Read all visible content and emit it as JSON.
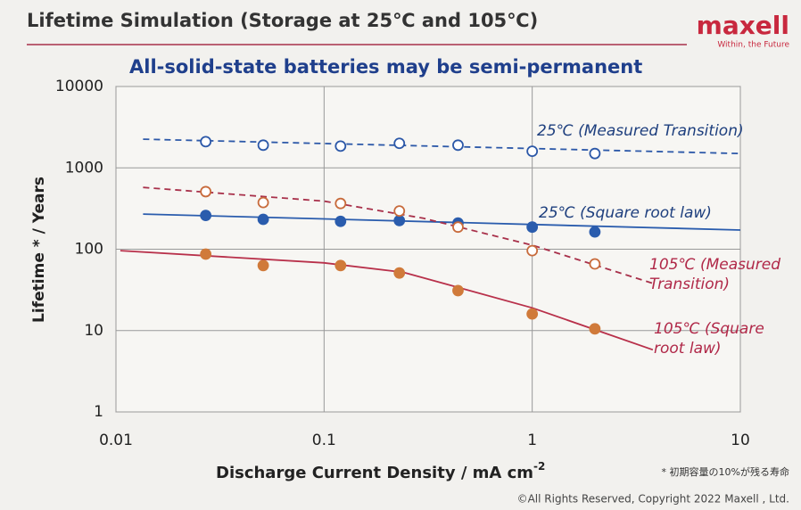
{
  "header": {
    "title": "Lifetime Simulation (Storage at 25℃ and 105℃)",
    "logo": "maxell",
    "tagline": "Within, the Future"
  },
  "chart_data": {
    "type": "scatter",
    "title": "All-solid-state batteries may be semi-permanent",
    "x_label": "Discharge Current Density  /  mA cm",
    "x_label_sup": "-2",
    "y_label": "Lifetime * / Years",
    "log_x": true,
    "log_y": true,
    "grid": true,
    "xlim": [
      0.01,
      10
    ],
    "xticks": [
      0.01,
      0.1,
      1,
      10
    ],
    "ylim": [
      1,
      10000
    ],
    "yticks": [
      1,
      10,
      100,
      1000,
      10000
    ],
    "x": [
      0.027,
      0.051,
      0.12,
      0.23,
      0.44,
      1.0,
      2.0
    ],
    "series": [
      {
        "name": "25℃ (Measured Transition)",
        "color": "#2c58a8",
        "label_color": "#1e3f7e",
        "marker": "open",
        "dashed": true,
        "values": [
          2100,
          1900,
          1850,
          2000,
          1900,
          1600,
          1500
        ],
        "fit_x": [
          0.0135,
          10
        ],
        "fit_values": [
          2250,
          1500
        ]
      },
      {
        "name": "25℃ (Square root law)",
        "color": "#2a5cad",
        "label_color": "#1e3f7e",
        "marker": "filled",
        "dashed": false,
        "values": [
          260,
          233,
          220,
          225,
          210,
          187,
          163
        ],
        "fit_x": [
          0.0135,
          10
        ],
        "fit_values": [
          270,
          172
        ]
      },
      {
        "name": "105℃ (Measured Transition)",
        "color": "#c86b3c",
        "line_color": "#a8304a",
        "label_color": "#b02848",
        "marker": "open",
        "dashed": true,
        "values": [
          510,
          375,
          365,
          295,
          187,
          96,
          66
        ],
        "fit_x": [
          0.0135,
          0.1,
          0.3,
          1,
          3.8
        ],
        "fit_values": [
          575,
          390,
          240,
          112,
          38
        ]
      },
      {
        "name": "105℃ (Square root law)",
        "color": "#d07a3a",
        "line_color": "#b8304a",
        "label_color": "#b02848",
        "marker": "filled",
        "dashed": false,
        "values": [
          87,
          63,
          63,
          51,
          31,
          16,
          10.5
        ],
        "fit_x": [
          0.0105,
          0.1,
          0.24,
          1,
          3.8
        ],
        "fit_values": [
          96,
          68,
          52,
          19,
          5.8
        ]
      }
    ]
  },
  "footer": {
    "note": "* 初期容量の10%が残る寿命",
    "copyright": "©All Rights Reserved, Copyright 2022 Maxell , Ltd."
  }
}
